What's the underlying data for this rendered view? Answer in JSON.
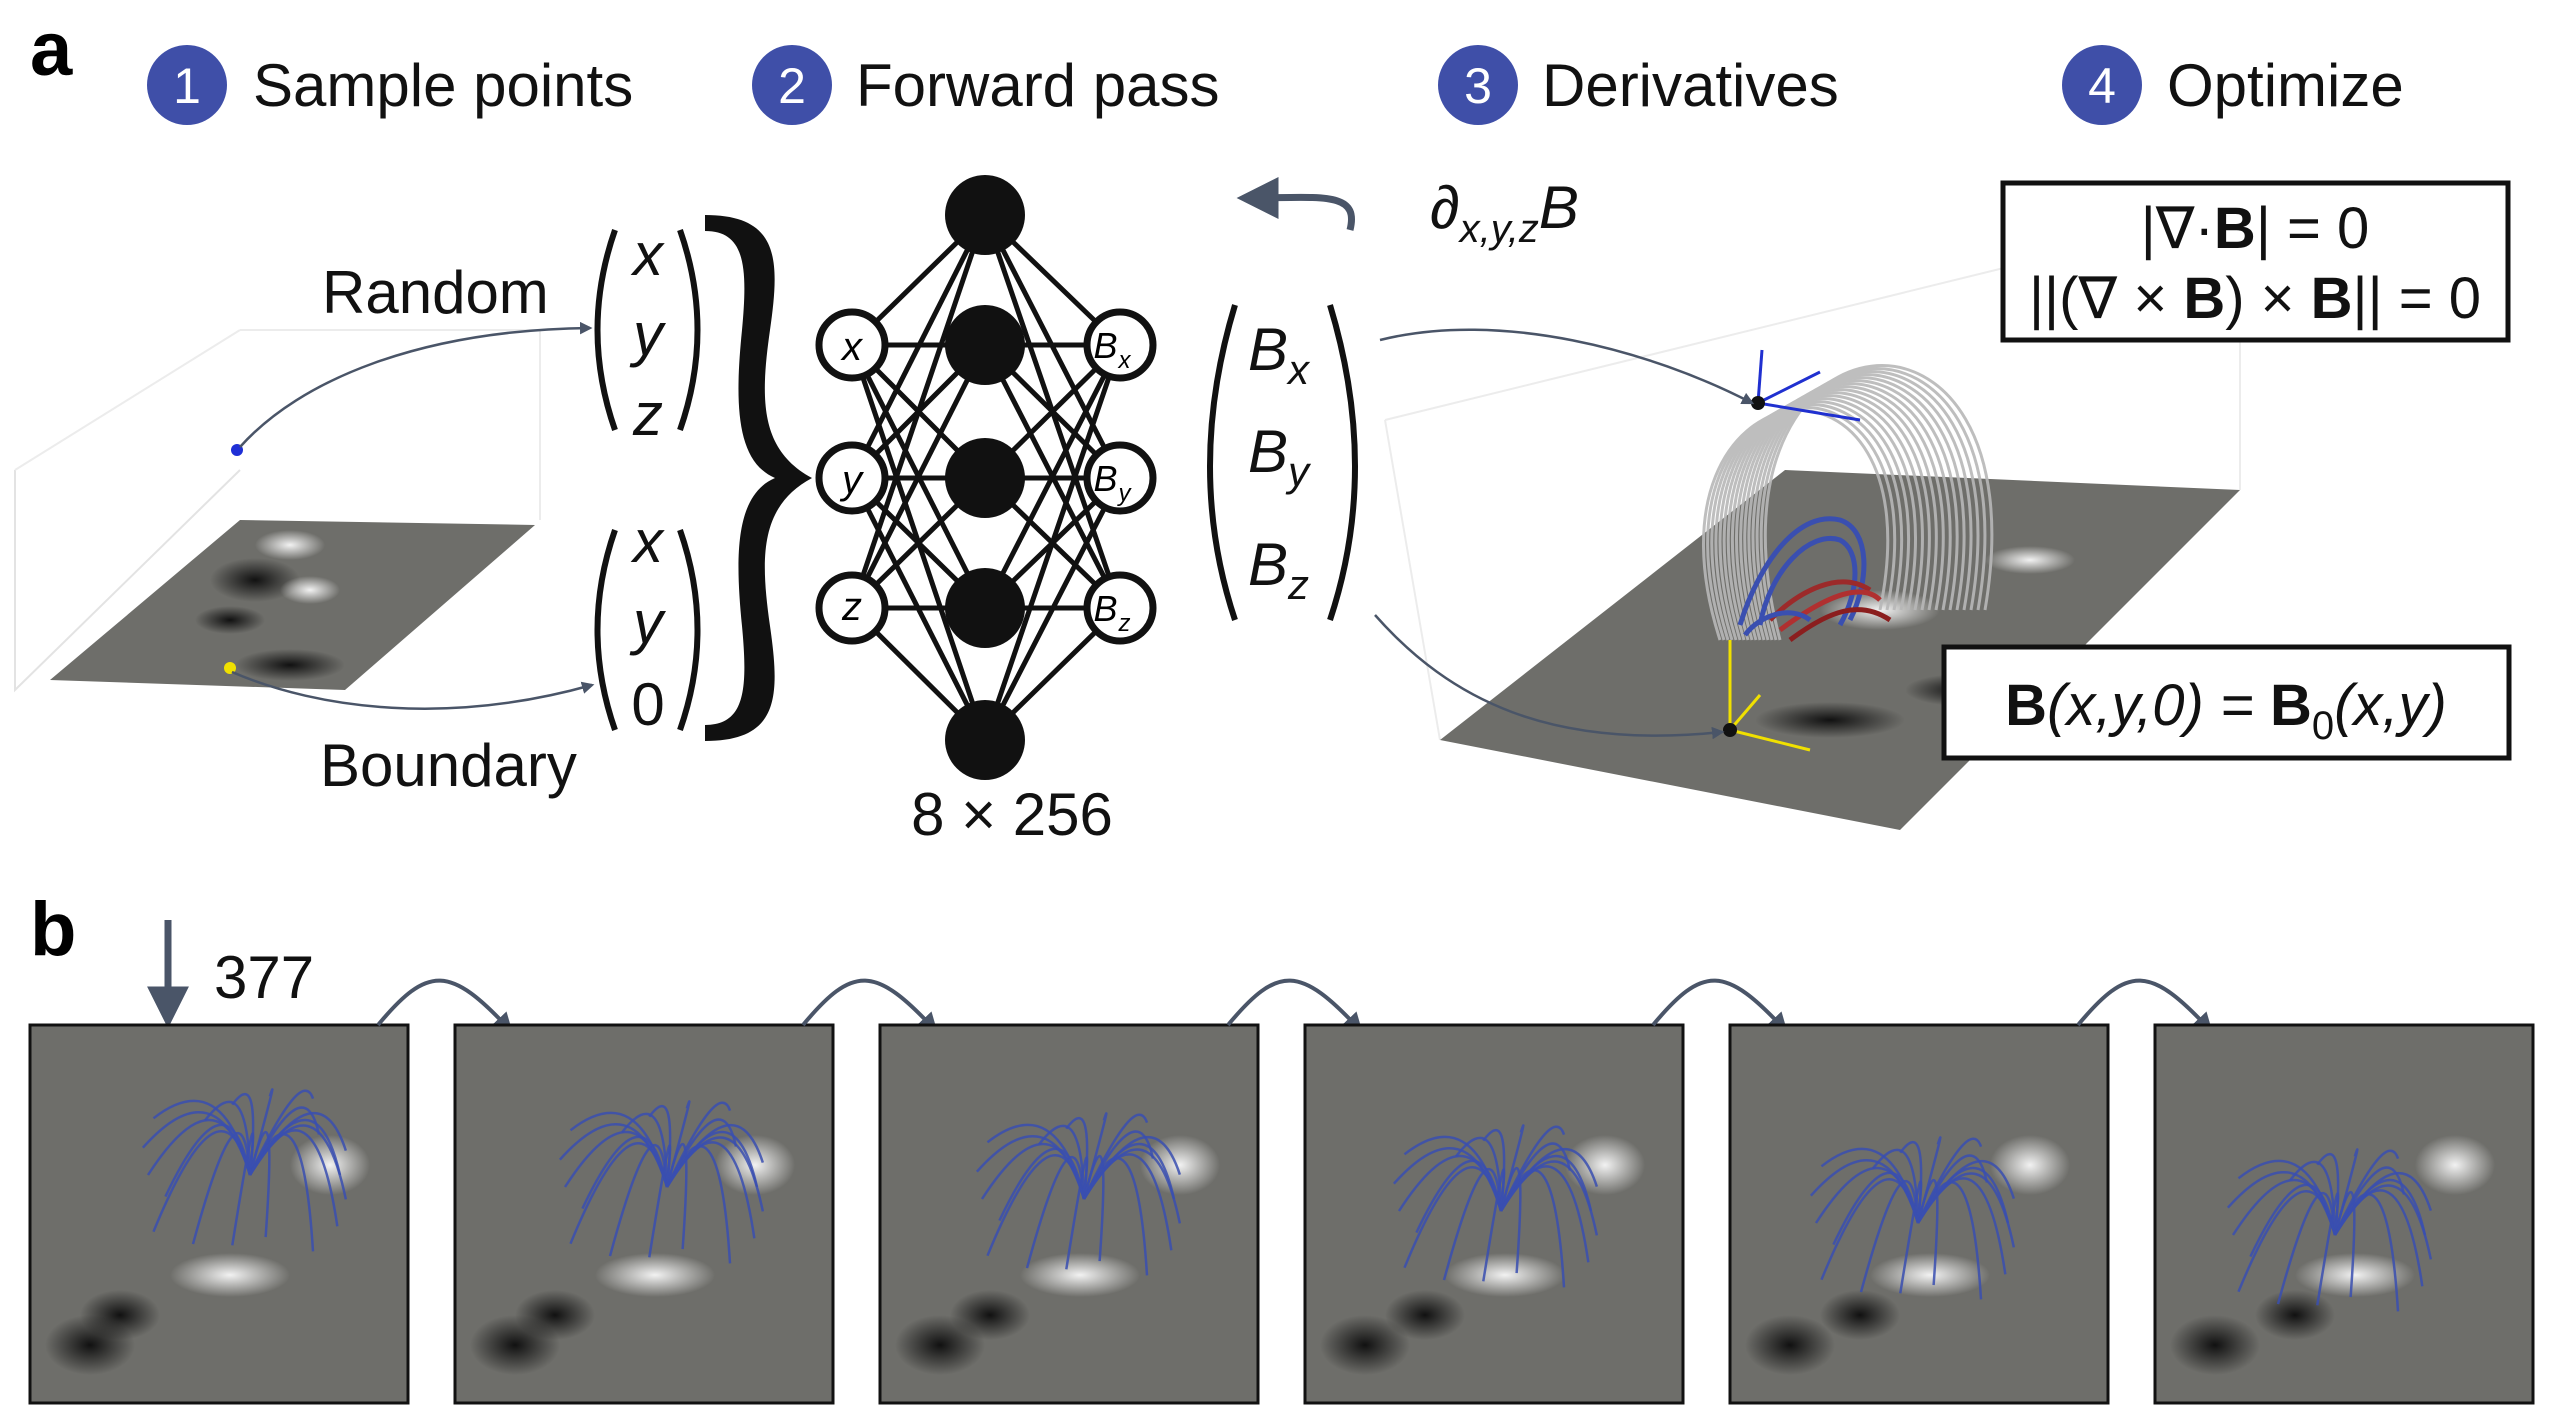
{
  "panel_a": {
    "letter": "a",
    "steps": [
      {
        "num": "1",
        "label": "Sample points"
      },
      {
        "num": "2",
        "label": "Forward pass"
      },
      {
        "num": "3",
        "label": "Derivatives"
      },
      {
        "num": "4",
        "label": "Optimize"
      }
    ],
    "random_label": "Random",
    "boundary_label": "Boundary",
    "random_vector": [
      "x",
      "y",
      "z"
    ],
    "boundary_vector": [
      "x",
      "y",
      "0"
    ],
    "input_nodes": [
      "x",
      "y",
      "z"
    ],
    "output_nodes": [
      "B",
      "B",
      "B"
    ],
    "output_subscripts": [
      "x",
      "y",
      "z"
    ],
    "network_size": "8 × 256",
    "output_vector": [
      "B",
      "B",
      "B"
    ],
    "output_vector_subscripts": [
      "x",
      "y",
      "z"
    ],
    "derivative_symbol": "∂",
    "derivative_subscript": "x,y,z",
    "derivative_var": "B",
    "optimize_eq1": {
      "pre": "|∇·",
      "bold": "B",
      "post": "| = 0"
    },
    "optimize_eq2": {
      "pre": "||(∇ × ",
      "bold1": "B",
      "mid": ") × ",
      "bold2": "B",
      "post": "|| = 0"
    },
    "boundary_eq": {
      "bold1": "B",
      "args1": "(x,y,0) = ",
      "bold2": "B",
      "sub": "0",
      "args2": "(x,y)"
    }
  },
  "panel_b": {
    "letter": "b",
    "arrow_label": "377",
    "frames": [
      "frame-1",
      "frame-2",
      "frame-3",
      "frame-4",
      "frame-5",
      "frame-6"
    ]
  },
  "colors": {
    "step_circle": "#3f4fa8",
    "arrow": "#4a5568",
    "field_lines_blue": "#3a4fb0",
    "field_lines_gray": "#b8b8b8",
    "magnetogram": "#6e6e6a",
    "random_point": "#1f2fd6",
    "boundary_point": "#f0e000"
  }
}
